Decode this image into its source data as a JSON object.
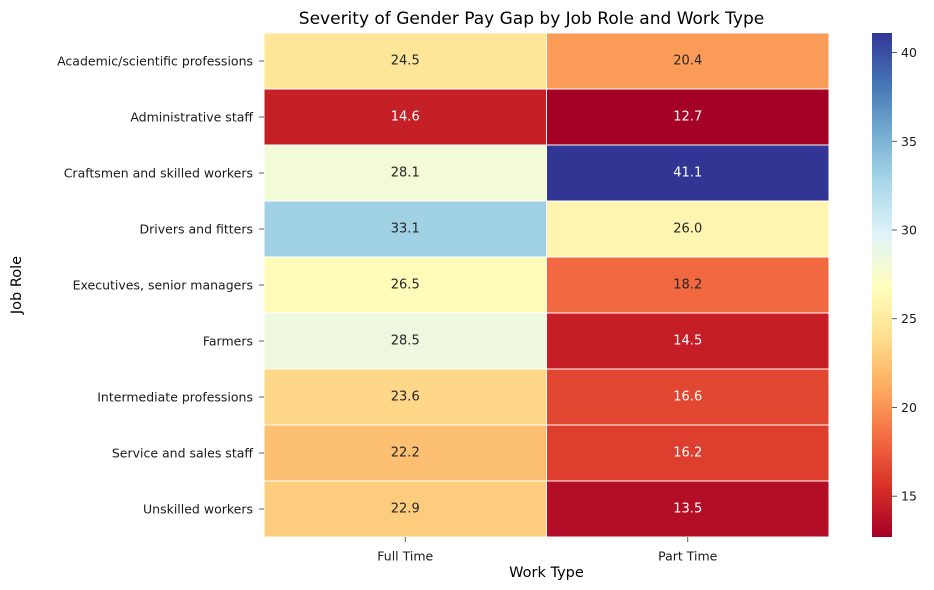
{
  "chart_data": {
    "type": "heatmap",
    "title": "Severity of Gender Pay Gap by Job Role and Work Type",
    "xlabel": "Work Type",
    "ylabel": "Job Role",
    "x_categories": [
      "Full Time",
      "Part Time"
    ],
    "y_categories": [
      "Academic/scientific professions",
      "Administrative staff",
      "Craftsmen and skilled workers",
      "Drivers and fitters",
      "Executives, senior managers",
      "Farmers",
      "Intermediate professions",
      "Service and sales staff",
      "Unskilled workers"
    ],
    "values": [
      [
        24.5,
        20.4
      ],
      [
        14.6,
        12.7
      ],
      [
        28.1,
        41.1
      ],
      [
        33.1,
        26.0
      ],
      [
        26.5,
        18.2
      ],
      [
        28.5,
        14.5
      ],
      [
        23.6,
        16.6
      ],
      [
        22.2,
        16.2
      ],
      [
        22.9,
        13.5
      ]
    ],
    "value_labels": [
      [
        "24.5",
        "20.4"
      ],
      [
        "14.6",
        "12.7"
      ],
      [
        "28.1",
        "41.1"
      ],
      [
        "33.1",
        "26.0"
      ],
      [
        "26.5",
        "18.2"
      ],
      [
        "28.5",
        "14.5"
      ],
      [
        "23.6",
        "16.6"
      ],
      [
        "22.2",
        "16.2"
      ],
      [
        "22.9",
        "13.5"
      ]
    ],
    "colormap": "RdYlBu",
    "color_range": [
      12.7,
      41.1
    ],
    "colorbar_ticks": [
      15,
      20,
      25,
      30,
      35,
      40
    ],
    "colorbar_tick_labels": [
      "15",
      "20",
      "25",
      "30",
      "35",
      "40"
    ],
    "legend": "colorbar right"
  }
}
